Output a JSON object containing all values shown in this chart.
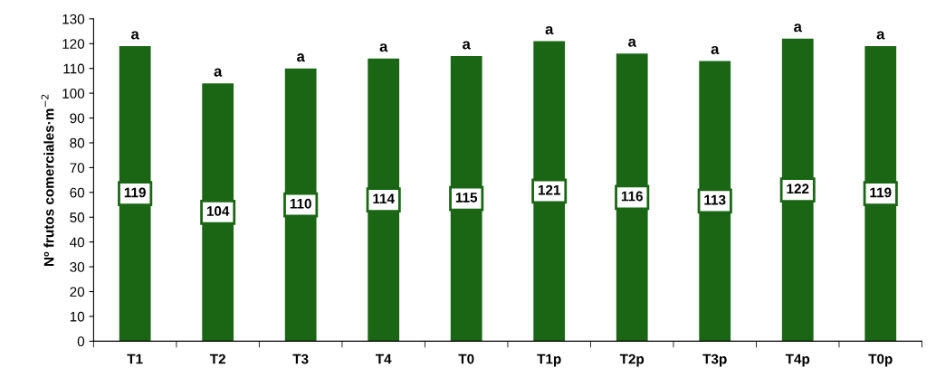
{
  "chart_data": {
    "type": "bar",
    "ylabel": "Nº frutos comerciales·m$^{−2}$",
    "categories": [
      "T1",
      "T2",
      "T3",
      "T4",
      "T0",
      "T1p",
      "T2p",
      "T3p",
      "T4p",
      "T0p"
    ],
    "values": [
      119,
      104,
      110,
      114,
      115,
      121,
      116,
      113,
      122,
      119
    ],
    "color": "#1a6614",
    "ylim": [
      0,
      130
    ],
    "yticks": [
      0,
      10,
      20,
      30,
      40,
      50,
      60,
      70,
      80,
      90,
      100,
      110,
      120,
      130
    ],
    "grid": false,
    "data_labels": true,
    "annotations": [
      {
        "text": "a",
        "x": "T1",
        "y": 119
      },
      {
        "text": "a",
        "x": "T2",
        "y": 104
      },
      {
        "text": "a",
        "x": "T3",
        "y": 110
      },
      {
        "text": "a",
        "x": "T4",
        "y": 114
      },
      {
        "text": "a",
        "x": "T0",
        "y": 115
      },
      {
        "text": "a",
        "x": "T1p",
        "y": 121
      },
      {
        "text": "a",
        "x": "T2p",
        "y": 116
      },
      {
        "text": "a",
        "x": "T3p",
        "y": 113
      },
      {
        "text": "a",
        "x": "T4p",
        "y": 122
      },
      {
        "text": "a",
        "x": "T0p",
        "y": 119
      }
    ]
  }
}
